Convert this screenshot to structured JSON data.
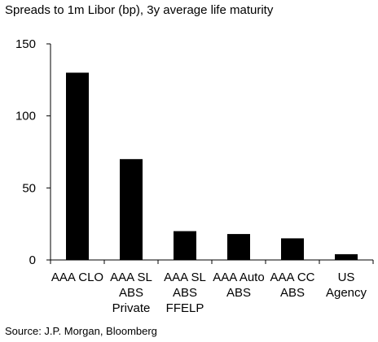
{
  "chart_data": {
    "type": "bar",
    "title": "Spreads to 1m Libor (bp), 3y average life maturity",
    "categories": [
      [
        "AAA CLO"
      ],
      [
        "AAA SL",
        "ABS",
        "Private"
      ],
      [
        "AAA SL",
        "ABS",
        "FFELP"
      ],
      [
        "AAA Auto",
        "ABS"
      ],
      [
        "AAA CC",
        "ABS"
      ],
      [
        "US",
        "Agency"
      ]
    ],
    "values": [
      130,
      70,
      20,
      18,
      15,
      4
    ],
    "ylim": [
      0,
      150
    ],
    "yticks": [
      "0",
      "50",
      "100",
      "150"
    ],
    "xlabel": "",
    "ylabel": "",
    "bar_color": "#000000",
    "grid": false,
    "source": "Source: J.P. Morgan, Bloomberg"
  }
}
